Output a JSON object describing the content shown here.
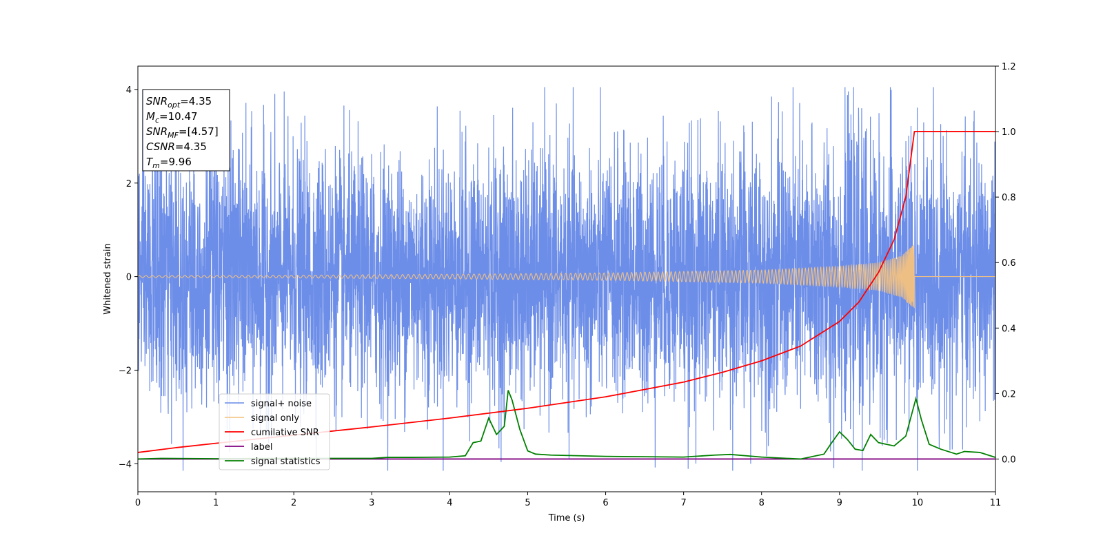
{
  "chart_data": {
    "type": "line",
    "title": "",
    "xlabel": "Time (s)",
    "ylabel": "Whitened strain",
    "y2label": "",
    "xlim": [
      0,
      11
    ],
    "ylim": [
      -4.6,
      4.5
    ],
    "y2lim": [
      -0.1,
      1.2
    ],
    "xticks": [
      "0",
      "1",
      "2",
      "3",
      "4",
      "5",
      "6",
      "7",
      "8",
      "9",
      "10",
      "11"
    ],
    "yticks": [
      "4",
      "2",
      "0",
      "−2",
      "−4"
    ],
    "y2ticks": [
      "1.2",
      "1.0",
      "0.8",
      "0.6",
      "0.4",
      "0.2",
      "0.0"
    ],
    "grid": false,
    "legend_position": "lower-left",
    "colors": {
      "noise": "#6d8ee8",
      "signal": "#f5c27e",
      "cumsnr": "#ff0000",
      "label": "#800080",
      "stats": "#008000"
    },
    "info_box": {
      "lines": [
        {
          "sym": "SNR",
          "sub": "opt",
          "val": "=4.35"
        },
        {
          "sym": "M",
          "sub": "c",
          "val": "=10.47"
        },
        {
          "sym": "SNR",
          "sub": "MF",
          "val": "=[4.57]"
        },
        {
          "sym": "CSNR",
          "sub": "",
          "val": "=4.35"
        },
        {
          "sym": "T",
          "sub": "m",
          "val": "=9.96"
        }
      ]
    },
    "legend": [
      {
        "key": "noise",
        "label": "signal+ noise"
      },
      {
        "key": "signal",
        "label": "signal only"
      },
      {
        "key": "cumsnr",
        "label": "cumilative SNR"
      },
      {
        "key": "label",
        "label": "label"
      },
      {
        "key": "stats",
        "label": "signal statistics"
      }
    ],
    "series": [
      {
        "name": "signal+ noise",
        "axis": "left",
        "kind": "noise",
        "envelope": [
          [
            0,
            3.5
          ],
          [
            0.5,
            3.7
          ],
          [
            1.4,
            3.6
          ],
          [
            3,
            3.3
          ],
          [
            5,
            3.5
          ],
          [
            6,
            3.4
          ],
          [
            8.6,
            3.8
          ],
          [
            9.2,
            4.05
          ],
          [
            10.5,
            3.5
          ],
          [
            11,
            3.3
          ]
        ],
        "min": -4.15,
        "max": 4.05
      },
      {
        "name": "signal only",
        "axis": "left",
        "kind": "chirp",
        "amplitude_envelope": [
          [
            0,
            0.02
          ],
          [
            2,
            0.03
          ],
          [
            4,
            0.05
          ],
          [
            6,
            0.08
          ],
          [
            8,
            0.14
          ],
          [
            9,
            0.22
          ],
          [
            9.5,
            0.3
          ],
          [
            9.8,
            0.45
          ],
          [
            9.96,
            0.7
          ],
          [
            9.97,
            0
          ]
        ],
        "merger_time": 9.96
      },
      {
        "name": "cumilative SNR",
        "axis": "right",
        "x": [
          0,
          0.5,
          1,
          2,
          3,
          4,
          5,
          6,
          7,
          7.5,
          8,
          8.5,
          9,
          9.25,
          9.5,
          9.7,
          9.85,
          9.96,
          10,
          11
        ],
        "y": [
          0.02,
          0.035,
          0.048,
          0.073,
          0.098,
          0.125,
          0.155,
          0.19,
          0.235,
          0.265,
          0.3,
          0.345,
          0.42,
          0.48,
          0.57,
          0.67,
          0.8,
          1.0,
          1.0,
          1.0
        ]
      },
      {
        "name": "label",
        "axis": "right",
        "x": [
          0,
          11
        ],
        "y": [
          0.0,
          0.0
        ]
      },
      {
        "name": "signal statistics",
        "axis": "right",
        "x": [
          0,
          0.3,
          1,
          2,
          3,
          3.2,
          3.5,
          4,
          4.2,
          4.3,
          4.4,
          4.5,
          4.6,
          4.7,
          4.75,
          4.8,
          4.9,
          5.0,
          5.1,
          5.3,
          6,
          7,
          7.4,
          7.6,
          8,
          8.5,
          8.8,
          8.9,
          9.0,
          9.1,
          9.2,
          9.3,
          9.4,
          9.5,
          9.7,
          9.85,
          9.98,
          10.05,
          10.15,
          10.3,
          10.5,
          10.6,
          10.8,
          11
        ],
        "y": [
          0.0,
          0.002,
          0.001,
          0.002,
          0.002,
          0.005,
          0.005,
          0.006,
          0.01,
          0.05,
          0.055,
          0.125,
          0.075,
          0.1,
          0.21,
          0.18,
          0.09,
          0.025,
          0.015,
          0.012,
          0.008,
          0.006,
          0.012,
          0.014,
          0.006,
          0.0,
          0.015,
          0.05,
          0.083,
          0.06,
          0.03,
          0.026,
          0.075,
          0.05,
          0.04,
          0.07,
          0.185,
          0.12,
          0.045,
          0.03,
          0.015,
          0.023,
          0.02,
          0.005
        ]
      }
    ]
  }
}
